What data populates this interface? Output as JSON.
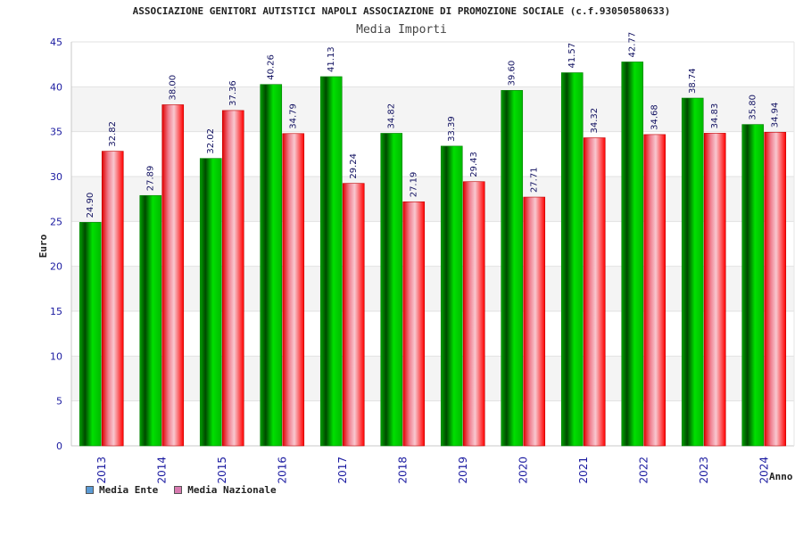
{
  "colors": {
    "ente": "#00c000",
    "nazionale": "#ff2020",
    "legend_ente": "#5b9bd5",
    "legend_nazionale": "#d87ab0",
    "text": "#1a1aa0"
  },
  "chart_data": {
    "type": "bar",
    "title": "ASSOCIAZIONE GENITORI AUTISTICI NAPOLI ASSOCIAZIONE DI PROMOZIONE SOCIALE (c.f.93050580633)",
    "subtitle": "Media Importi",
    "xlabel": "Anno",
    "ylabel": "Euro",
    "ylim": [
      0,
      45
    ],
    "yticks": [
      0,
      5,
      10,
      15,
      20,
      25,
      30,
      35,
      40,
      45
    ],
    "grid": true,
    "legend_position": "bottom-left",
    "categories": [
      "2013",
      "2014",
      "2015",
      "2016",
      "2017",
      "2018",
      "2019",
      "2020",
      "2021",
      "2022",
      "2023",
      "2024"
    ],
    "series": [
      {
        "name": "Media Ente",
        "values": [
          24.9,
          27.89,
          32.02,
          40.26,
          41.13,
          34.82,
          33.39,
          39.6,
          41.57,
          42.77,
          38.74,
          35.8
        ],
        "labels": [
          "24.90",
          "27.89",
          "32.02",
          "40.26",
          "41.13",
          "34.82",
          "33.39",
          "39.60",
          "41.57",
          "42.77",
          "38.74",
          "35.80"
        ]
      },
      {
        "name": "Media Nazionale",
        "values": [
          32.82,
          38.0,
          37.36,
          34.79,
          29.24,
          27.19,
          29.43,
          27.71,
          34.32,
          34.68,
          34.83,
          34.94
        ],
        "labels": [
          "32.82",
          "38.00",
          "37.36",
          "34.79",
          "29.24",
          "27.19",
          "29.43",
          "27.71",
          "34.32",
          "34.68",
          "34.83",
          "34.94"
        ]
      }
    ]
  }
}
